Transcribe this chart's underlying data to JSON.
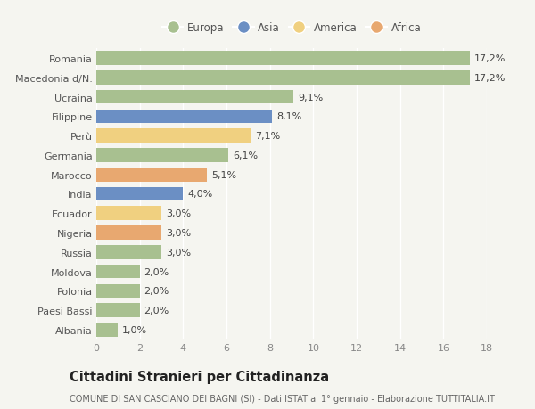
{
  "countries": [
    "Albania",
    "Paesi Bassi",
    "Polonia",
    "Moldova",
    "Russia",
    "Nigeria",
    "Ecuador",
    "India",
    "Marocco",
    "Germania",
    "Perù",
    "Filippine",
    "Ucraina",
    "Macedonia d/N.",
    "Romania"
  ],
  "values": [
    1.0,
    2.0,
    2.0,
    2.0,
    3.0,
    3.0,
    3.0,
    4.0,
    5.1,
    6.1,
    7.1,
    8.1,
    9.1,
    17.2,
    17.2
  ],
  "labels": [
    "1,0%",
    "2,0%",
    "2,0%",
    "2,0%",
    "3,0%",
    "3,0%",
    "3,0%",
    "4,0%",
    "5,1%",
    "6,1%",
    "7,1%",
    "8,1%",
    "9,1%",
    "17,2%",
    "17,2%"
  ],
  "continents": [
    "Europa",
    "Europa",
    "Europa",
    "Europa",
    "Europa",
    "Africa",
    "America",
    "Asia",
    "Africa",
    "Europa",
    "America",
    "Asia",
    "Europa",
    "Europa",
    "Europa"
  ],
  "continent_colors": {
    "Europa": "#a8c090",
    "Asia": "#6b8fc4",
    "America": "#f0d080",
    "Africa": "#e8a870"
  },
  "legend_order": [
    "Europa",
    "Asia",
    "America",
    "Africa"
  ],
  "title": "Cittadini Stranieri per Cittadinanza",
  "subtitle": "COMUNE DI SAN CASCIANO DEI BAGNI (SI) - Dati ISTAT al 1° gennaio - Elaborazione TUTTITALIA.IT",
  "xlim": [
    0,
    18
  ],
  "xticks": [
    0,
    2,
    4,
    6,
    8,
    10,
    12,
    14,
    16,
    18
  ],
  "background_color": "#f5f5f0",
  "bar_height": 0.72,
  "grid_color": "#ffffff",
  "label_fontsize": 8,
  "tick_fontsize": 8,
  "title_fontsize": 10.5,
  "subtitle_fontsize": 7
}
